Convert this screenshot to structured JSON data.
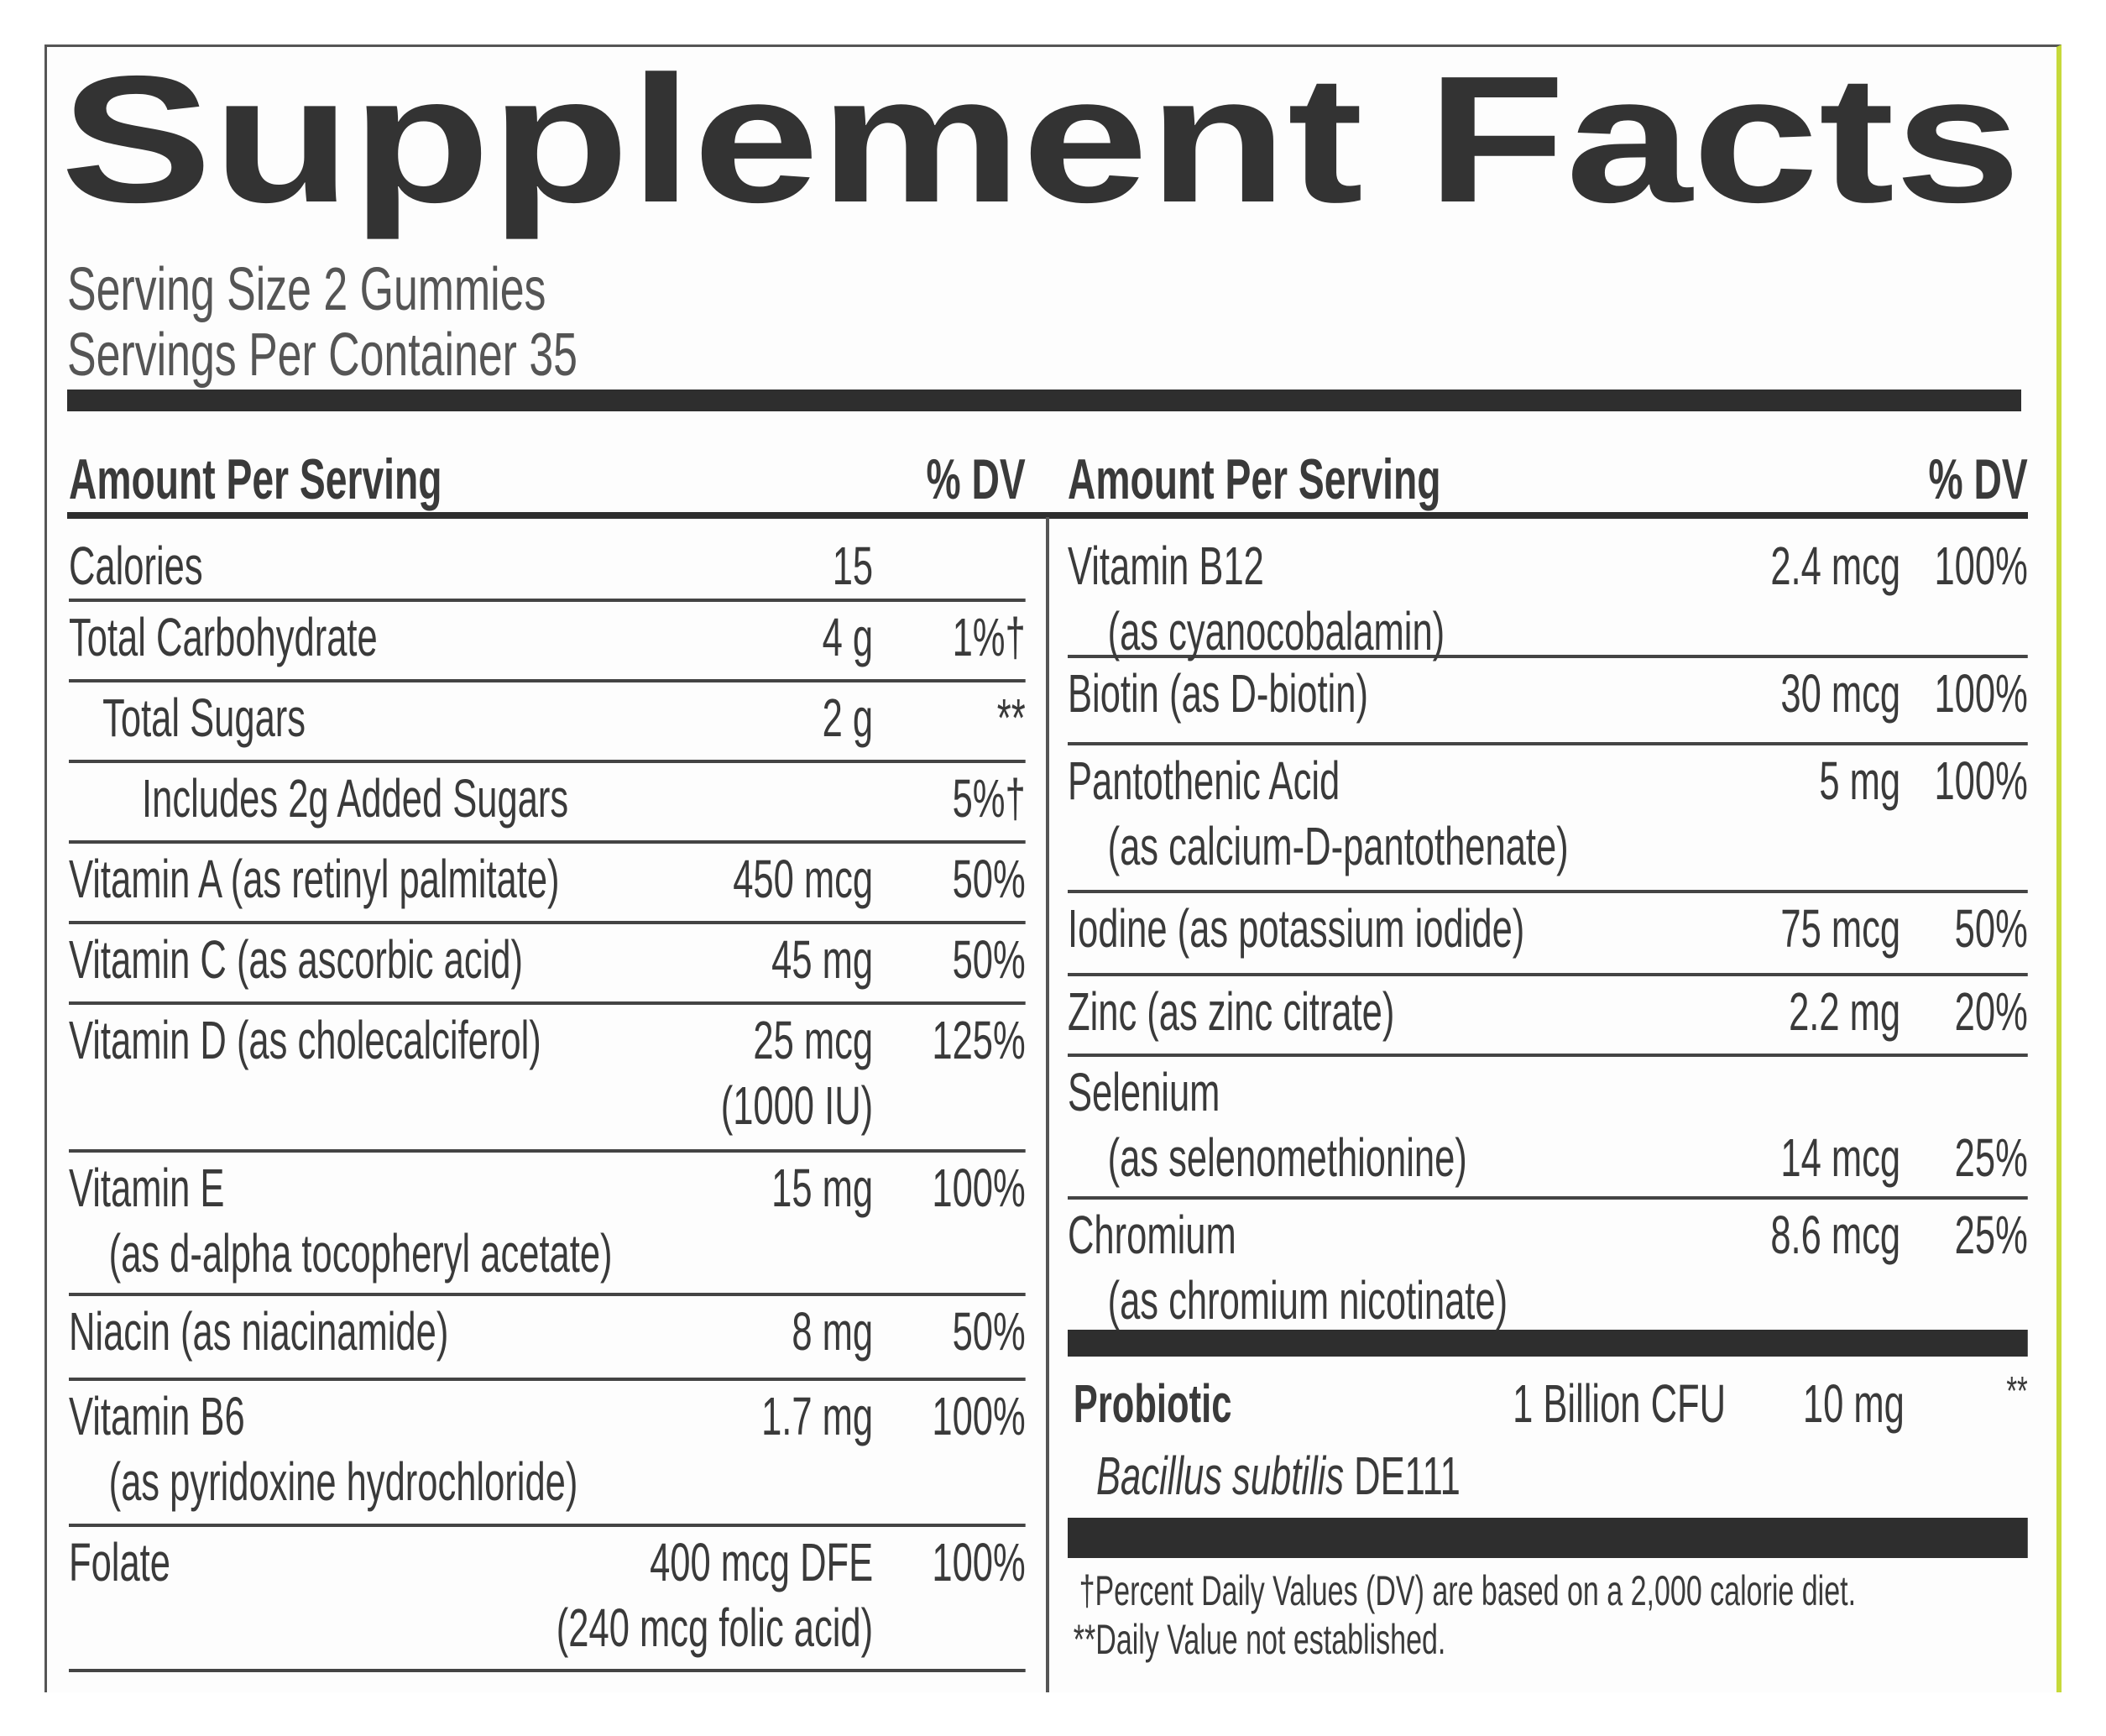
{
  "title": "Supplement Facts",
  "serving_size": "Serving Size 2 Gummies",
  "servings_per_container": "Servings Per Container 35",
  "columns": [
    {
      "header": {
        "amount": "Amount Per Serving",
        "dv": "% DV"
      },
      "rows": [
        {
          "name": "Calories",
          "amount": "15"
        },
        {
          "name": "Total Carbohydrate",
          "amount": "4 g",
          "dv": "1%†"
        },
        {
          "name": "Total Sugars",
          "amount": "2 g",
          "dv": "**"
        },
        {
          "name": "Includes 2g Added Sugars",
          "dv": "5%†"
        },
        {
          "name": "Vitamin A (as retinyl palmitate)",
          "amount": "450 mcg",
          "dv": "50%"
        },
        {
          "name": "Vitamin C (as ascorbic acid)",
          "amount": "45 mg",
          "dv": "50%"
        },
        {
          "name": "Vitamin D (as cholecalciferol)",
          "amount": "25 mcg",
          "amount_note": "(1000 IU)",
          "dv": "125%"
        },
        {
          "name": "Vitamin E",
          "source": "(as d-alpha tocopheryl acetate)",
          "amount": "15 mg",
          "dv": "100%"
        },
        {
          "name": "Niacin (as niacinamide)",
          "amount": "8 mg",
          "dv": "50%"
        },
        {
          "name": "Vitamin B6",
          "source": "(as pyridoxine hydrochloride)",
          "amount": "1.7 mg",
          "dv": "100%"
        },
        {
          "name": "Folate",
          "amount": "400 mcg DFE",
          "amount_note": "(240 mcg folic acid)",
          "dv": "100%"
        }
      ]
    },
    {
      "header": {
        "amount": "Amount Per Serving",
        "dv": "% DV"
      },
      "rows": [
        {
          "name": "Vitamin B12",
          "source": "(as cyanocobalamin)",
          "amount": "2.4 mcg",
          "dv": "100%"
        },
        {
          "name": "Biotin (as D-biotin)",
          "amount": "30 mcg",
          "dv": "100%"
        },
        {
          "name": "Pantothenic Acid",
          "source": "(as calcium-D-pantothenate)",
          "amount": "5 mg",
          "dv": "100%"
        },
        {
          "name": "Iodine (as potassium iodide)",
          "amount": "75 mcg",
          "dv": "50%"
        },
        {
          "name": "Zinc (as zinc citrate)",
          "amount": "2.2 mg",
          "dv": "20%"
        },
        {
          "name": "Selenium",
          "source": "(as selenomethionine)",
          "amount": "14 mcg",
          "dv": "25%"
        },
        {
          "name": "Chromium",
          "source": "(as chromium nicotinate)",
          "amount": "8.6 mcg",
          "dv": "25%"
        }
      ]
    }
  ],
  "probiotic": {
    "name": "Probiotic",
    "count": "1 Billion CFU",
    "amount": "10 mg",
    "dv": "**",
    "strain": {
      "species": "Bacillus subtilis",
      "code": "DE111"
    }
  },
  "footnotes": [
    "†Percent Daily Values (DV) are based on a 2,000 calorie diet.",
    "**Daily Value not established."
  ]
}
